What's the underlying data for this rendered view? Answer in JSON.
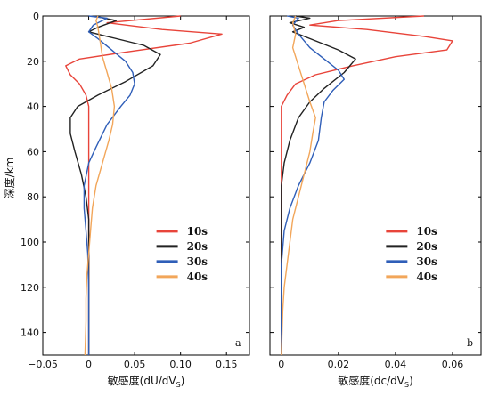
{
  "chart_data": [
    {
      "type": "line",
      "panel_label": "a",
      "xlabel": "敏感度(dU/dV",
      "xlabel_sub": "S",
      "xlabel_tail": ")",
      "ylabel": "深度/km",
      "xlim": [
        -0.05,
        0.175
      ],
      "ylim": [
        0,
        150
      ],
      "y_inverted": true,
      "xticks": [
        -0.05,
        0,
        0.05,
        0.1,
        0.15
      ],
      "xtick_labels": [
        "−0.05",
        "0",
        "0.05",
        "0.10",
        "0.15"
      ],
      "yticks": [
        0,
        20,
        40,
        60,
        80,
        100,
        120,
        140
      ],
      "ytick_labels": [
        "0",
        "20",
        "40",
        "60",
        "80",
        "100",
        "120",
        "140"
      ],
      "legend_position": "center-right",
      "series": [
        {
          "name": "10s",
          "color": "#e8443a",
          "points": [
            [
              0.1,
              0
            ],
            [
              0.02,
              3
            ],
            [
              0.08,
              6
            ],
            [
              0.145,
              8
            ],
            [
              0.11,
              12
            ],
            [
              0.04,
              16
            ],
            [
              -0.01,
              19
            ],
            [
              -0.025,
              22
            ],
            [
              -0.02,
              26
            ],
            [
              -0.01,
              30
            ],
            [
              -0.003,
              35
            ],
            [
              0.0,
              40
            ],
            [
              0.0,
              50
            ],
            [
              0.0,
              150
            ]
          ]
        },
        {
          "name": "20s",
          "color": "#222222",
          "points": [
            [
              0.005,
              0
            ],
            [
              0.03,
              2
            ],
            [
              0.01,
              5
            ],
            [
              0.0,
              7
            ],
            [
              0.02,
              9
            ],
            [
              0.06,
              13
            ],
            [
              0.078,
              17
            ],
            [
              0.07,
              22
            ],
            [
              0.04,
              29
            ],
            [
              0.01,
              35
            ],
            [
              -0.012,
              40
            ],
            [
              -0.02,
              45
            ],
            [
              -0.02,
              52
            ],
            [
              -0.015,
              60
            ],
            [
              -0.008,
              70
            ],
            [
              -0.003,
              80
            ],
            [
              0.0,
              90
            ],
            [
              0.0,
              150
            ]
          ]
        },
        {
          "name": "30s",
          "color": "#2f5eb8",
          "points": [
            [
              0.0,
              0
            ],
            [
              0.02,
              1
            ],
            [
              0.005,
              4
            ],
            [
              0.0,
              7
            ],
            [
              0.01,
              10
            ],
            [
              0.025,
              15
            ],
            [
              0.04,
              20
            ],
            [
              0.048,
              25
            ],
            [
              0.05,
              30
            ],
            [
              0.045,
              35
            ],
            [
              0.035,
              40
            ],
            [
              0.02,
              48
            ],
            [
              0.008,
              58
            ],
            [
              0.0,
              65
            ],
            [
              -0.005,
              75
            ],
            [
              -0.005,
              85
            ],
            [
              -0.003,
              95
            ],
            [
              -0.001,
              105
            ],
            [
              0.0,
              120
            ],
            [
              0.0,
              150
            ]
          ]
        },
        {
          "name": "40s",
          "color": "#f2a65a",
          "points": [
            [
              0.01,
              0
            ],
            [
              0.008,
              2
            ],
            [
              0.01,
              5
            ],
            [
              0.012,
              10
            ],
            [
              0.015,
              18
            ],
            [
              0.02,
              25
            ],
            [
              0.025,
              32
            ],
            [
              0.028,
              40
            ],
            [
              0.026,
              48
            ],
            [
              0.022,
              55
            ],
            [
              0.015,
              65
            ],
            [
              0.008,
              75
            ],
            [
              0.004,
              85
            ],
            [
              0.002,
              95
            ],
            [
              0.0,
              105
            ],
            [
              -0.002,
              115
            ],
            [
              -0.003,
              125
            ],
            [
              -0.003,
              135
            ],
            [
              -0.004,
              150
            ]
          ]
        }
      ]
    },
    {
      "type": "line",
      "panel_label": "b",
      "xlabel": "敏感度(dc/dV",
      "xlabel_sub": "S",
      "xlabel_tail": ")",
      "xlim": [
        -0.004,
        0.07
      ],
      "ylim": [
        0,
        150
      ],
      "y_inverted": true,
      "xticks": [
        0,
        0.02,
        0.04,
        0.06
      ],
      "xtick_labels": [
        "0",
        "0.02",
        "0.04",
        "0.06"
      ],
      "yticks": [
        0,
        20,
        40,
        60,
        80,
        100,
        120,
        140
      ],
      "legend_position": "center-right",
      "series": [
        {
          "name": "10s",
          "color": "#e8443a",
          "points": [
            [
              0.05,
              0
            ],
            [
              0.02,
              2
            ],
            [
              0.01,
              4
            ],
            [
              0.03,
              6
            ],
            [
              0.05,
              9
            ],
            [
              0.06,
              11
            ],
            [
              0.058,
              15
            ],
            [
              0.04,
              18
            ],
            [
              0.025,
              22
            ],
            [
              0.012,
              26
            ],
            [
              0.005,
              30
            ],
            [
              0.002,
              35
            ],
            [
              0.0,
              40
            ],
            [
              0.0,
              150
            ]
          ]
        },
        {
          "name": "20s",
          "color": "#222222",
          "points": [
            [
              0.005,
              0
            ],
            [
              0.01,
              1
            ],
            [
              0.003,
              3
            ],
            [
              0.008,
              5
            ],
            [
              0.004,
              7
            ],
            [
              0.01,
              10
            ],
            [
              0.02,
              15
            ],
            [
              0.026,
              19
            ],
            [
              0.022,
              25
            ],
            [
              0.015,
              32
            ],
            [
              0.01,
              38
            ],
            [
              0.006,
              45
            ],
            [
              0.003,
              55
            ],
            [
              0.001,
              65
            ],
            [
              0.0,
              75
            ],
            [
              0.0,
              150
            ]
          ]
        },
        {
          "name": "30s",
          "color": "#2f5eb8",
          "points": [
            [
              0.002,
              0
            ],
            [
              0.006,
              1
            ],
            [
              0.004,
              4
            ],
            [
              0.006,
              8
            ],
            [
              0.01,
              14
            ],
            [
              0.016,
              20
            ],
            [
              0.02,
              24
            ],
            [
              0.022,
              28
            ],
            [
              0.018,
              33
            ],
            [
              0.015,
              38
            ],
            [
              0.014,
              45
            ],
            [
              0.013,
              55
            ],
            [
              0.01,
              65
            ],
            [
              0.006,
              75
            ],
            [
              0.003,
              85
            ],
            [
              0.001,
              95
            ],
            [
              0.0,
              110
            ],
            [
              0.0,
              150
            ]
          ]
        },
        {
          "name": "40s",
          "color": "#f2a65a",
          "points": [
            [
              0.005,
              0
            ],
            [
              0.004,
              3
            ],
            [
              0.005,
              8
            ],
            [
              0.004,
              14
            ],
            [
              0.006,
              22
            ],
            [
              0.008,
              30
            ],
            [
              0.01,
              38
            ],
            [
              0.012,
              45
            ],
            [
              0.011,
              52
            ],
            [
              0.01,
              60
            ],
            [
              0.008,
              70
            ],
            [
              0.006,
              80
            ],
            [
              0.004,
              90
            ],
            [
              0.003,
              100
            ],
            [
              0.002,
              110
            ],
            [
              0.001,
              120
            ],
            [
              0.0005,
              130
            ],
            [
              0.0,
              150
            ]
          ]
        }
      ]
    }
  ]
}
